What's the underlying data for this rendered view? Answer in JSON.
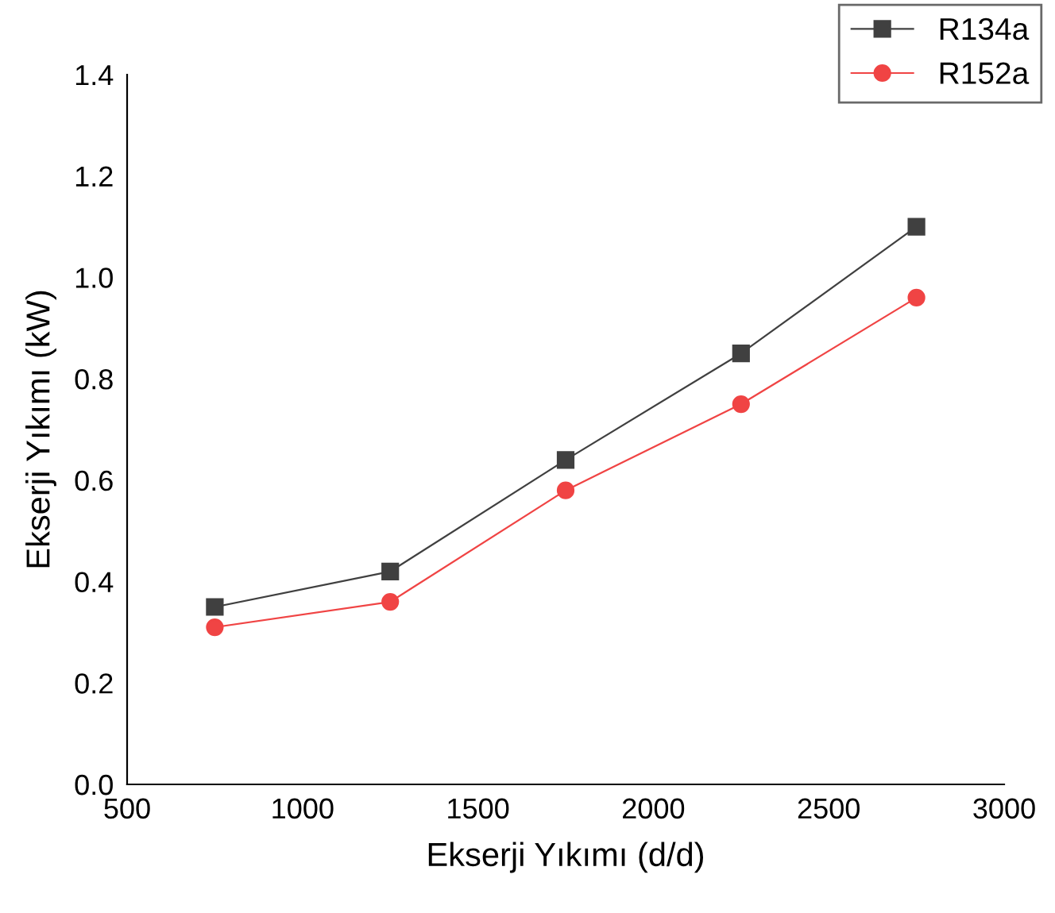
{
  "chart_data": {
    "type": "line",
    "xlabel": "Ekserji Yıkımı (d/d)",
    "ylabel": "Ekserji Yıkımı (kW)",
    "x": [
      750,
      1250,
      1750,
      2250,
      2750
    ],
    "series": [
      {
        "name": "R134a",
        "color": "#404040",
        "marker": "square",
        "values": [
          0.35,
          0.42,
          0.64,
          0.85,
          1.1
        ]
      },
      {
        "name": "R152a",
        "color": "#f04444",
        "marker": "circle",
        "values": [
          0.31,
          0.36,
          0.58,
          0.75,
          0.96
        ]
      }
    ],
    "xlim": [
      500,
      3000
    ],
    "xticks": [
      500,
      1000,
      1500,
      2000,
      2500,
      3000
    ],
    "ylim": [
      0,
      1.4
    ],
    "yticks": [
      {
        "value": 0,
        "label": "0.0"
      },
      {
        "value": 0.2,
        "label": "0.2"
      },
      {
        "value": 0.4,
        "label": "0.4"
      },
      {
        "value": 0.6,
        "label": "0.6"
      },
      {
        "value": 0.8,
        "label": "0.8"
      },
      {
        "value": 1.0,
        "label": "1.0"
      },
      {
        "value": 1.2,
        "label": "1.2"
      },
      {
        "value": 1.4,
        "label": "1.4"
      }
    ],
    "grid": false,
    "legend": "top right",
    "line_style": "solid"
  }
}
